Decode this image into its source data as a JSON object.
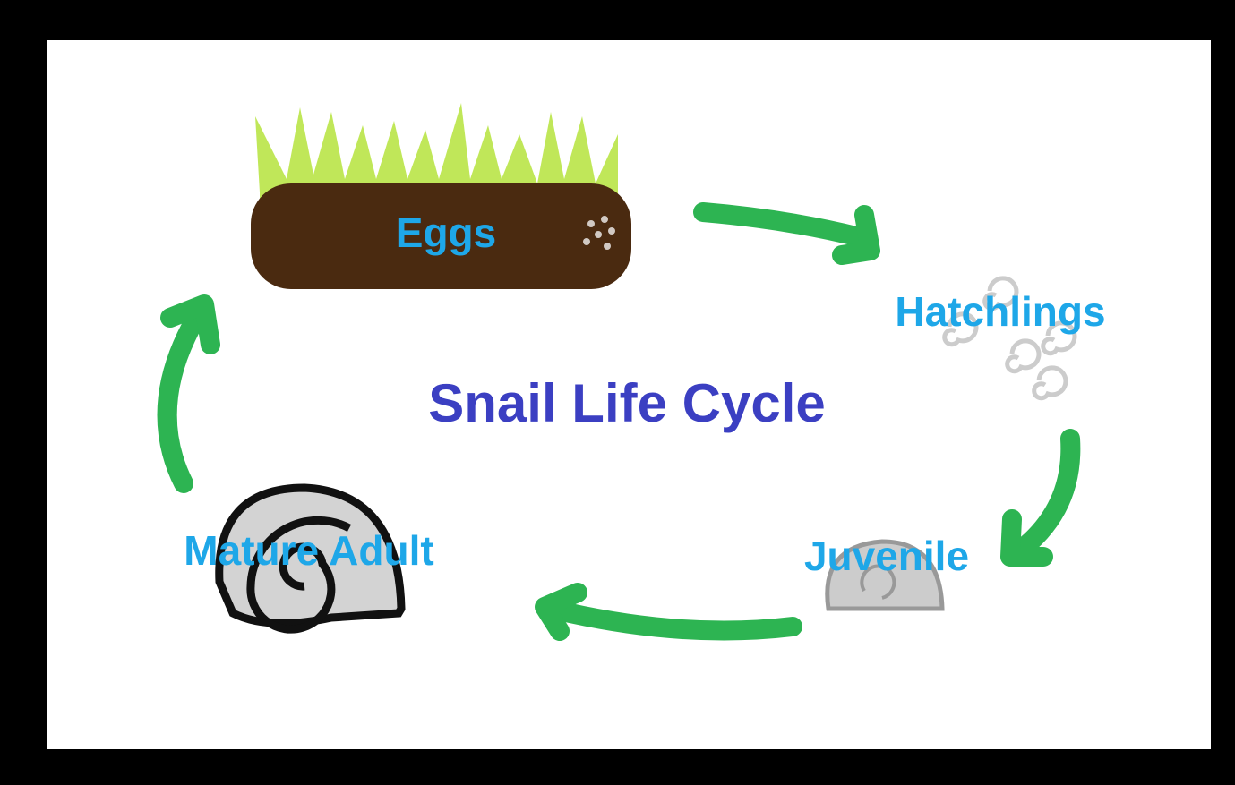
{
  "title": "Snail Life Cycle",
  "stages": [
    {
      "label": "Eggs"
    },
    {
      "label": "Hatchlings"
    },
    {
      "label": "Juvenile"
    },
    {
      "label": "Mature Adult"
    }
  ]
}
